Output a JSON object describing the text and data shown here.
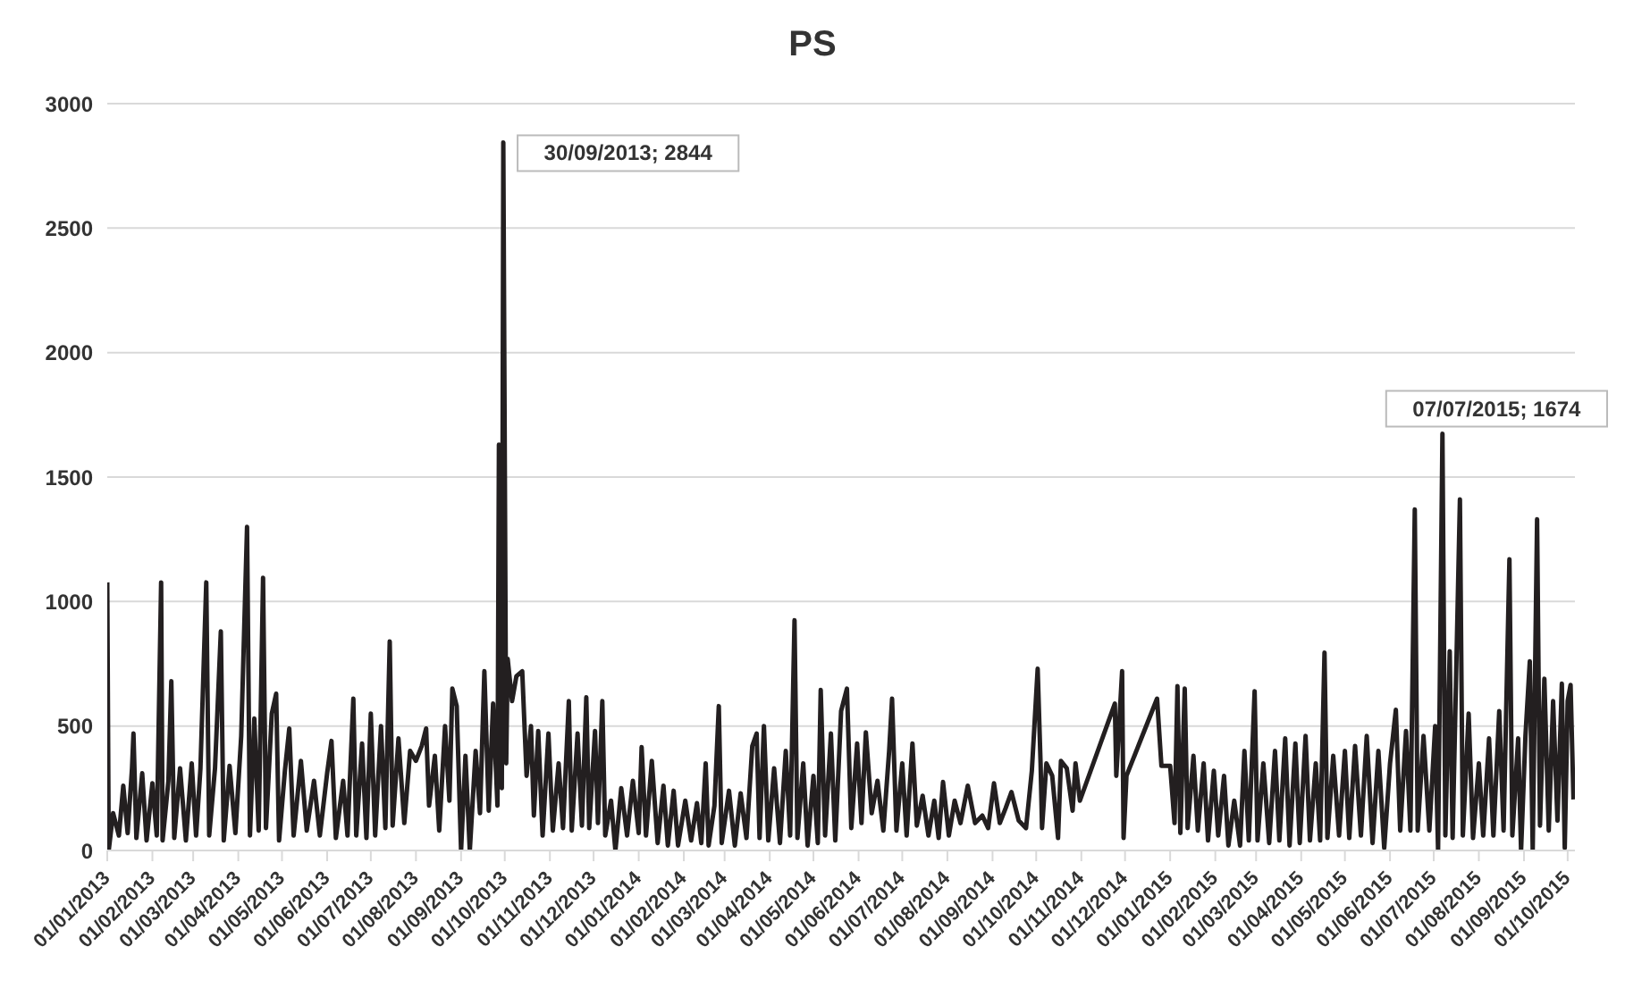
{
  "chart_data": {
    "type": "line",
    "title": "PS",
    "color": "#231f20",
    "grid": "y",
    "xlim": [
      "2013-01-01",
      "2015-10-06"
    ],
    "ylim": [
      0,
      3000
    ],
    "yticks": [
      0,
      500,
      1000,
      1500,
      2000,
      2500,
      3000
    ],
    "xticks": [
      {
        "value": "2013-01-01",
        "label": "01/01/2013"
      },
      {
        "value": "2013-02-01",
        "label": "01/02/2013"
      },
      {
        "value": "2013-03-01",
        "label": "01/03/2013"
      },
      {
        "value": "2013-04-01",
        "label": "01/04/2013"
      },
      {
        "value": "2013-05-01",
        "label": "01/05/2013"
      },
      {
        "value": "2013-06-01",
        "label": "01/06/2013"
      },
      {
        "value": "2013-07-01",
        "label": "01/07/2013"
      },
      {
        "value": "2013-08-01",
        "label": "01/08/2013"
      },
      {
        "value": "2013-09-01",
        "label": "01/09/2013"
      },
      {
        "value": "2013-10-01",
        "label": "01/10/2013"
      },
      {
        "value": "2013-11-01",
        "label": "01/11/2013"
      },
      {
        "value": "2013-12-01",
        "label": "01/12/2013"
      },
      {
        "value": "2014-01-01",
        "label": "01/01/2014"
      },
      {
        "value": "2014-02-01",
        "label": "01/02/2014"
      },
      {
        "value": "2014-03-01",
        "label": "01/03/2014"
      },
      {
        "value": "2014-04-01",
        "label": "01/04/2014"
      },
      {
        "value": "2014-05-01",
        "label": "01/05/2014"
      },
      {
        "value": "2014-06-01",
        "label": "01/06/2014"
      },
      {
        "value": "2014-07-01",
        "label": "01/07/2014"
      },
      {
        "value": "2014-08-01",
        "label": "01/08/2014"
      },
      {
        "value": "2014-09-01",
        "label": "01/09/2014"
      },
      {
        "value": "2014-10-01",
        "label": "01/10/2014"
      },
      {
        "value": "2014-11-01",
        "label": "01/11/2014"
      },
      {
        "value": "2014-12-01",
        "label": "01/12/2014"
      },
      {
        "value": "2015-01-01",
        "label": "01/01/2015"
      },
      {
        "value": "2015-02-01",
        "label": "01/02/2015"
      },
      {
        "value": "2015-03-01",
        "label": "01/03/2015"
      },
      {
        "value": "2015-04-01",
        "label": "01/04/2015"
      },
      {
        "value": "2015-05-01",
        "label": "01/05/2015"
      },
      {
        "value": "2015-06-01",
        "label": "01/06/2015"
      },
      {
        "value": "2015-07-01",
        "label": "01/07/2015"
      },
      {
        "value": "2015-08-01",
        "label": "01/08/2015"
      },
      {
        "value": "2015-09-01",
        "label": "01/09/2015"
      },
      {
        "value": "2015-10-01",
        "label": "01/10/2015"
      }
    ],
    "annotations": [
      {
        "text": "30/09/2013; 2844",
        "x": "2013-09-30",
        "y": 2844
      },
      {
        "text": "07/07/2015; 1674",
        "x": "2015-07-07",
        "y": 1674
      }
    ],
    "x": [
      "2013-01-01",
      "2013-01-02",
      "2013-01-05",
      "2013-01-09",
      "2013-01-12",
      "2013-01-15",
      "2013-01-18",
      "2013-01-19",
      "2013-01-21",
      "2013-01-25",
      "2013-01-28",
      "2013-02-01",
      "2013-02-04",
      "2013-02-07",
      "2013-02-08",
      "2013-02-12",
      "2013-02-14",
      "2013-02-16",
      "2013-02-20",
      "2013-02-24",
      "2013-02-28",
      "2013-03-03",
      "2013-03-06",
      "2013-03-10",
      "2013-03-12",
      "2013-03-16",
      "2013-03-20",
      "2013-03-22",
      "2013-03-26",
      "2013-03-30",
      "2013-04-03",
      "2013-04-07",
      "2013-04-09",
      "2013-04-12",
      "2013-04-15",
      "2013-04-18",
      "2013-04-20",
      "2013-04-24",
      "2013-04-27",
      "2013-04-29",
      "2013-05-03",
      "2013-05-06",
      "2013-05-09",
      "2013-05-14",
      "2013-05-18",
      "2013-05-23",
      "2013-05-27",
      "2013-06-01",
      "2013-06-04",
      "2013-06-07",
      "2013-06-12",
      "2013-06-15",
      "2013-06-19",
      "2013-06-21",
      "2013-06-25",
      "2013-06-28",
      "2013-07-01",
      "2013-07-04",
      "2013-07-08",
      "2013-07-11",
      "2013-07-14",
      "2013-07-16",
      "2013-07-20",
      "2013-07-24",
      "2013-07-28",
      "2013-08-01",
      "2013-08-05",
      "2013-08-08",
      "2013-08-10",
      "2013-08-14",
      "2013-08-17",
      "2013-08-21",
      "2013-08-24",
      "2013-08-26",
      "2013-08-29",
      "2013-09-01",
      "2013-09-04",
      "2013-09-07",
      "2013-09-11",
      "2013-09-14",
      "2013-09-17",
      "2013-09-20",
      "2013-09-23",
      "2013-09-26",
      "2013-09-27",
      "2013-09-29",
      "2013-09-30",
      "2013-10-02",
      "2013-10-03",
      "2013-10-06",
      "2013-10-09",
      "2013-10-13",
      "2013-10-16",
      "2013-10-19",
      "2013-10-21",
      "2013-10-24",
      "2013-10-27",
      "2013-10-31",
      "2013-11-03",
      "2013-11-07",
      "2013-11-10",
      "2013-11-14",
      "2013-11-16",
      "2013-11-20",
      "2013-11-23",
      "2013-11-26",
      "2013-11-28",
      "2013-12-02",
      "2013-12-04",
      "2013-12-07",
      "2013-12-09",
      "2013-12-13",
      "2013-12-16",
      "2013-12-20",
      "2013-12-24",
      "2013-12-28",
      "2014-01-01",
      "2014-01-03",
      "2014-01-06",
      "2014-01-10",
      "2014-01-14",
      "2014-01-18",
      "2014-01-21",
      "2014-01-25",
      "2014-01-28",
      "2014-02-02",
      "2014-02-06",
      "2014-02-10",
      "2014-02-13",
      "2014-02-16",
      "2014-02-18",
      "2014-02-22",
      "2014-02-25",
      "2014-02-27",
      "2014-03-04",
      "2014-03-08",
      "2014-03-12",
      "2014-03-16",
      "2014-03-20",
      "2014-03-23",
      "2014-03-25",
      "2014-03-28",
      "2014-03-31",
      "2014-04-04",
      "2014-04-08",
      "2014-04-12",
      "2014-04-15",
      "2014-04-18",
      "2014-04-20",
      "2014-04-24",
      "2014-04-27",
      "2014-05-01",
      "2014-05-04",
      "2014-05-06",
      "2014-05-09",
      "2014-05-13",
      "2014-05-16",
      "2014-05-20",
      "2014-05-24",
      "2014-05-27",
      "2014-05-31",
      "2014-06-03",
      "2014-06-06",
      "2014-06-10",
      "2014-06-14",
      "2014-06-18",
      "2014-06-22",
      "2014-06-24",
      "2014-06-27",
      "2014-07-01",
      "2014-07-04",
      "2014-07-08",
      "2014-07-11",
      "2014-07-15",
      "2014-07-19",
      "2014-07-23",
      "2014-07-26",
      "2014-07-29",
      "2014-08-02",
      "2014-08-06",
      "2014-08-10",
      "2014-08-15",
      "2014-08-20",
      "2014-08-25",
      "2014-08-29",
      "2014-09-02",
      "2014-09-06",
      "2014-09-10",
      "2014-09-14",
      "2014-09-19",
      "2014-09-24",
      "2014-09-28",
      "2014-10-02",
      "2014-10-04",
      "2014-10-05",
      "2014-10-08",
      "2014-10-12",
      "2014-10-16",
      "2014-10-18",
      "2014-10-22",
      "2014-10-26",
      "2014-10-28",
      "2014-10-31",
      "2014-11-24",
      "2014-11-25",
      "2014-11-29",
      "2014-11-30",
      "2014-12-02",
      "2014-12-23",
      "2014-12-26",
      "2015-01-01",
      "2015-01-04",
      "2015-01-06",
      "2015-01-08",
      "2015-01-11",
      "2015-01-13",
      "2015-01-17",
      "2015-01-20",
      "2015-01-24",
      "2015-01-27",
      "2015-01-31",
      "2015-02-03",
      "2015-02-07",
      "2015-02-10",
      "2015-02-14",
      "2015-02-18",
      "2015-02-21",
      "2015-02-24",
      "2015-02-28",
      "2015-03-02",
      "2015-03-06",
      "2015-03-10",
      "2015-03-14",
      "2015-03-17",
      "2015-03-21",
      "2015-03-24",
      "2015-03-28",
      "2015-03-31",
      "2015-04-04",
      "2015-04-07",
      "2015-04-11",
      "2015-04-14",
      "2015-04-17",
      "2015-04-19",
      "2015-04-23",
      "2015-04-27",
      "2015-05-01",
      "2015-05-04",
      "2015-05-08",
      "2015-05-12",
      "2015-05-16",
      "2015-05-20",
      "2015-05-24",
      "2015-05-28",
      "2015-06-01",
      "2015-06-05",
      "2015-06-08",
      "2015-06-12",
      "2015-06-15",
      "2015-06-18",
      "2015-06-20",
      "2015-06-24",
      "2015-06-28",
      "2015-07-02",
      "2015-07-04",
      "2015-07-07",
      "2015-07-09",
      "2015-07-12",
      "2015-07-14",
      "2015-07-19",
      "2015-07-21",
      "2015-07-25",
      "2015-07-28",
      "2015-08-01",
      "2015-08-04",
      "2015-08-08",
      "2015-08-11",
      "2015-08-15",
      "2015-08-18",
      "2015-08-22",
      "2015-08-24",
      "2015-08-28",
      "2015-08-30",
      "2015-09-02",
      "2015-09-05",
      "2015-09-07",
      "2015-09-10",
      "2015-09-12",
      "2015-09-15",
      "2015-09-18",
      "2015-09-21",
      "2015-09-24",
      "2015-09-27",
      "2015-09-29",
      "2015-10-01",
      "2015-10-03",
      "2015-10-05"
    ],
    "values": [
      1077,
      0,
      150,
      60,
      260,
      70,
      330,
      470,
      50,
      310,
      40,
      270,
      60,
      1077,
      40,
      280,
      680,
      50,
      330,
      40,
      350,
      60,
      330,
      1077,
      60,
      330,
      880,
      40,
      340,
      70,
      460,
      1300,
      60,
      530,
      80,
      1095,
      90,
      550,
      630,
      40,
      320,
      490,
      60,
      360,
      80,
      280,
      60,
      310,
      440,
      50,
      280,
      60,
      610,
      60,
      430,
      50,
      550,
      60,
      500,
      90,
      840,
      100,
      450,
      110,
      400,
      360,
      420,
      490,
      180,
      380,
      80,
      500,
      200,
      650,
      580,
      0,
      380,
      0,
      400,
      150,
      720,
      160,
      590,
      180,
      1630,
      250,
      2844,
      350,
      770,
      600,
      700,
      720,
      300,
      500,
      140,
      480,
      60,
      470,
      80,
      350,
      90,
      600,
      80,
      470,
      100,
      615,
      90,
      480,
      110,
      600,
      60,
      200,
      0,
      250,
      60,
      280,
      70,
      415,
      60,
      360,
      30,
      260,
      20,
      240,
      20,
      200,
      40,
      190,
      30,
      350,
      20,
      180,
      580,
      30,
      240,
      20,
      230,
      50,
      420,
      470,
      50,
      500,
      40,
      330,
      30,
      400,
      60,
      925,
      50,
      350,
      20,
      300,
      30,
      645,
      60,
      470,
      40,
      560,
      650,
      90,
      430,
      110,
      475,
      150,
      280,
      80,
      400,
      610,
      80,
      350,
      60,
      430,
      100,
      220,
      60,
      200,
      50,
      275,
      60,
      200,
      110,
      260,
      110,
      140,
      90,
      270,
      110,
      170,
      235,
      120,
      90,
      320,
      730,
      350,
      90,
      350,
      300,
      50,
      360,
      330,
      160,
      350,
      200,
      590,
      300,
      720,
      50,
      300,
      610,
      340,
      340,
      110,
      660,
      70,
      650,
      90,
      380,
      80,
      350,
      40,
      320,
      60,
      300,
      20,
      200,
      20,
      400,
      40,
      640,
      40,
      350,
      30,
      400,
      40,
      450,
      20,
      430,
      30,
      460,
      40,
      350,
      40,
      795,
      50,
      380,
      60,
      400,
      50,
      420,
      60,
      460,
      30,
      400,
      10,
      350,
      565,
      80,
      480,
      80,
      1370,
      80,
      460,
      80,
      500,
      0,
      1674,
      60,
      800,
      50,
      1410,
      60,
      550,
      50,
      350,
      60,
      450,
      60,
      560,
      80,
      1170,
      60,
      450,
      0,
      460,
      760,
      0,
      1330,
      100,
      690,
      80,
      600,
      120,
      670,
      10,
      600,
      665,
      205
    ]
  }
}
